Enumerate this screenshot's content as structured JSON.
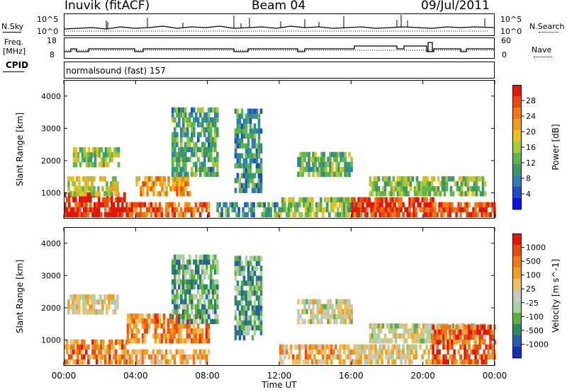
{
  "header": {
    "station": "Inuvik (fitACF)",
    "beam": "Beam 04",
    "date": "09/Jul/2011"
  },
  "nsky_panel": {
    "left_label": "N.Sky",
    "right_label": "N.Search",
    "left_ticks": [
      "10^5",
      "10^0"
    ],
    "right_ticks": [
      "10^5",
      "10^0"
    ]
  },
  "freq_panel": {
    "left_label_1": "Freq.",
    "left_label_2": "[MHz]",
    "right_label": "Nave",
    "left_ticks": [
      "18",
      "8"
    ],
    "right_ticks": [
      "60",
      "0"
    ]
  },
  "cpid_panel": {
    "label": "CPID",
    "text": "normalsound (fast) 157"
  },
  "chart_data": [
    {
      "type": "heatmap",
      "title": "",
      "xlabel": "Time UT",
      "ylabel": "Slant Range [km]",
      "xlim": [
        "00:00",
        "24:00"
      ],
      "ylim": [
        200,
        4500
      ],
      "x_ticks": [
        "00:00",
        "04:00",
        "08:00",
        "12:00",
        "16:00",
        "20:00",
        "00:00"
      ],
      "y_ticks": [
        "1000",
        "2000",
        "3000",
        "4000"
      ],
      "colorbar": {
        "label": "Power [dB]",
        "ticks": [
          "4",
          "8",
          "12",
          "16",
          "20",
          "24",
          "28"
        ],
        "colors": [
          "#1010e0",
          "#1d4fc0",
          "#2f7fb0",
          "#3a9a6a",
          "#5fb54a",
          "#a8c838",
          "#e8c020",
          "#f0a020",
          "#f07818",
          "#e84a10",
          "#e01808"
        ]
      },
      "bands": [
        {
          "t0": 0.0,
          "t1": 3.5,
          "r0": 250,
          "r1": 900,
          "level": 0.95
        },
        {
          "t0": 0.2,
          "t1": 3.0,
          "r0": 900,
          "r1": 1500,
          "level": 0.55
        },
        {
          "t0": 0.5,
          "t1": 3.0,
          "r0": 1800,
          "r1": 2300,
          "level": 0.45
        },
        {
          "t0": 3.5,
          "t1": 8.0,
          "r0": 250,
          "r1": 700,
          "level": 0.8
        },
        {
          "t0": 4.0,
          "t1": 7.0,
          "r0": 900,
          "r1": 1500,
          "level": 0.7
        },
        {
          "t0": 6.0,
          "t1": 8.5,
          "r0": 1500,
          "r1": 3600,
          "level": 0.35
        },
        {
          "t0": 8.5,
          "t1": 12.0,
          "r0": 250,
          "r1": 600,
          "level": 0.3
        },
        {
          "t0": 9.5,
          "t1": 11.0,
          "r0": 1000,
          "r1": 3500,
          "level": 0.3
        },
        {
          "t0": 12.0,
          "t1": 16.5,
          "r0": 250,
          "r1": 800,
          "level": 0.45
        },
        {
          "t0": 13.0,
          "t1": 16.0,
          "r0": 1500,
          "r1": 2200,
          "level": 0.4
        },
        {
          "t0": 16.0,
          "t1": 20.5,
          "r0": 250,
          "r1": 800,
          "level": 0.9
        },
        {
          "t0": 17.0,
          "t1": 23.5,
          "r0": 900,
          "r1": 1500,
          "level": 0.45
        },
        {
          "t0": 20.5,
          "t1": 24.0,
          "r0": 250,
          "r1": 700,
          "level": 0.85
        }
      ]
    },
    {
      "type": "heatmap",
      "title": "",
      "xlabel": "Time UT",
      "ylabel": "Slant Range [km]",
      "xlim": [
        "00:00",
        "24:00"
      ],
      "ylim": [
        200,
        4500
      ],
      "x_ticks": [
        "00:00",
        "04:00",
        "08:00",
        "12:00",
        "16:00",
        "20:00",
        "00:00"
      ],
      "y_ticks": [
        "1000",
        "2000",
        "3000",
        "4000"
      ],
      "colorbar": {
        "label": "Velocity [m s^-1]",
        "ticks": [
          "1000",
          "500",
          "100",
          "25",
          "-25",
          "-100",
          "-500",
          "-1000"
        ],
        "colors": [
          "#1a2fb0",
          "#2a5fa8",
          "#2a8a60",
          "#5fb040",
          "#a8d0a0",
          "#c8c8c0",
          "#f0c060",
          "#f0a020",
          "#f07818",
          "#e84a10",
          "#e01808"
        ]
      },
      "bands": [
        {
          "t0": 0.0,
          "t1": 3.5,
          "r0": 250,
          "r1": 900,
          "level": 0.75
        },
        {
          "t0": 0.2,
          "t1": 3.0,
          "r0": 1800,
          "r1": 2300,
          "level": 0.55
        },
        {
          "t0": 3.5,
          "t1": 8.0,
          "r0": 900,
          "r1": 1700,
          "level": 0.75
        },
        {
          "t0": 3.5,
          "t1": 8.0,
          "r0": 250,
          "r1": 700,
          "level": 0.65
        },
        {
          "t0": 6.0,
          "t1": 8.5,
          "r0": 1500,
          "r1": 3600,
          "level": 0.3
        },
        {
          "t0": 9.5,
          "t1": 11.0,
          "r0": 1000,
          "r1": 3500,
          "level": 0.3
        },
        {
          "t0": 12.0,
          "t1": 16.5,
          "r0": 250,
          "r1": 800,
          "level": 0.65
        },
        {
          "t0": 13.0,
          "t1": 16.0,
          "r0": 1500,
          "r1": 2200,
          "level": 0.5
        },
        {
          "t0": 16.0,
          "t1": 20.5,
          "r0": 250,
          "r1": 800,
          "level": 0.55
        },
        {
          "t0": 17.0,
          "t1": 23.5,
          "r0": 900,
          "r1": 1500,
          "level": 0.5
        },
        {
          "t0": 20.5,
          "t1": 24.0,
          "r0": 250,
          "r1": 1400,
          "level": 0.85
        }
      ]
    }
  ]
}
